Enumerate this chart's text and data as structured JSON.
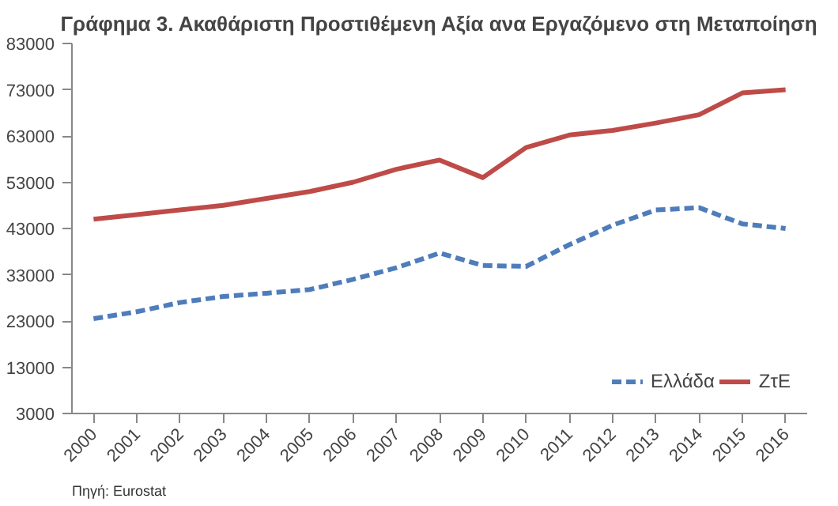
{
  "chart_data": {
    "type": "line",
    "title": "Γράφημα 3. Ακαθάριστη Προστιθέμενη Αξία ανα Εργαζόμενο στη Μεταποίηση",
    "categories": [
      "2000",
      "2001",
      "2002",
      "2003",
      "2004",
      "2005",
      "2006",
      "2007",
      "2008",
      "2009",
      "2010",
      "2011",
      "2012",
      "2013",
      "2014",
      "2015",
      "2016"
    ],
    "series": [
      {
        "name": "Ελλάδα",
        "color": "#4f7dbb",
        "line_style": "dashed",
        "values": [
          23500,
          25000,
          27000,
          28300,
          29000,
          29800,
          32000,
          34500,
          37700,
          35000,
          34800,
          39500,
          43700,
          47000,
          47500,
          44000,
          43000
        ]
      },
      {
        "name": "ΖτΕ",
        "color": "#be4b48",
        "line_style": "solid",
        "values": [
          45000,
          46000,
          47000,
          48000,
          49500,
          51000,
          53000,
          55800,
          57800,
          54000,
          60500,
          63200,
          64200,
          65800,
          67600,
          72300,
          73000
        ]
      }
    ],
    "ylim": [
      3000,
      83000
    ],
    "yticks": [
      3000,
      13000,
      23000,
      33000,
      43000,
      53000,
      63000,
      73000,
      83000
    ],
    "grid": false,
    "legend": "bottom right",
    "annotations": [
      "Πηγή: Eurostat"
    ]
  }
}
